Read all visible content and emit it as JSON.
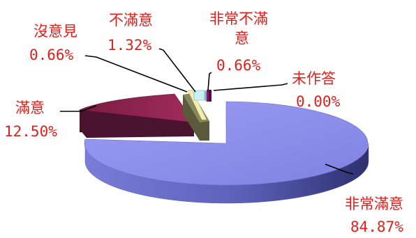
{
  "chart_data": {
    "type": "pie",
    "style": "3d-exploded",
    "slices": [
      {
        "name": "非常滿意",
        "value": 84.87,
        "value_label": "84.87%",
        "color": "#8a8ce8"
      },
      {
        "name": "滿意",
        "value": 12.5,
        "value_label": "12.50%",
        "color": "#8e2450"
      },
      {
        "name": "沒意見",
        "value": 0.66,
        "value_label": "0.66%",
        "color": "#f3edb0"
      },
      {
        "name": "不滿意",
        "value": 1.32,
        "value_label": "1.32%",
        "color": "#c9f0f2"
      },
      {
        "name": "非常不滿意",
        "name_lines": [
          "非常不滿",
          "意"
        ],
        "value": 0.66,
        "value_label": "0.66%",
        "color": "#7a1a6a"
      },
      {
        "name": "未作答",
        "value": 0.0,
        "value_label": "0.00%",
        "color": "#d9d9d9"
      }
    ],
    "title": "",
    "legend": "none",
    "label_color": "#e0201c"
  }
}
